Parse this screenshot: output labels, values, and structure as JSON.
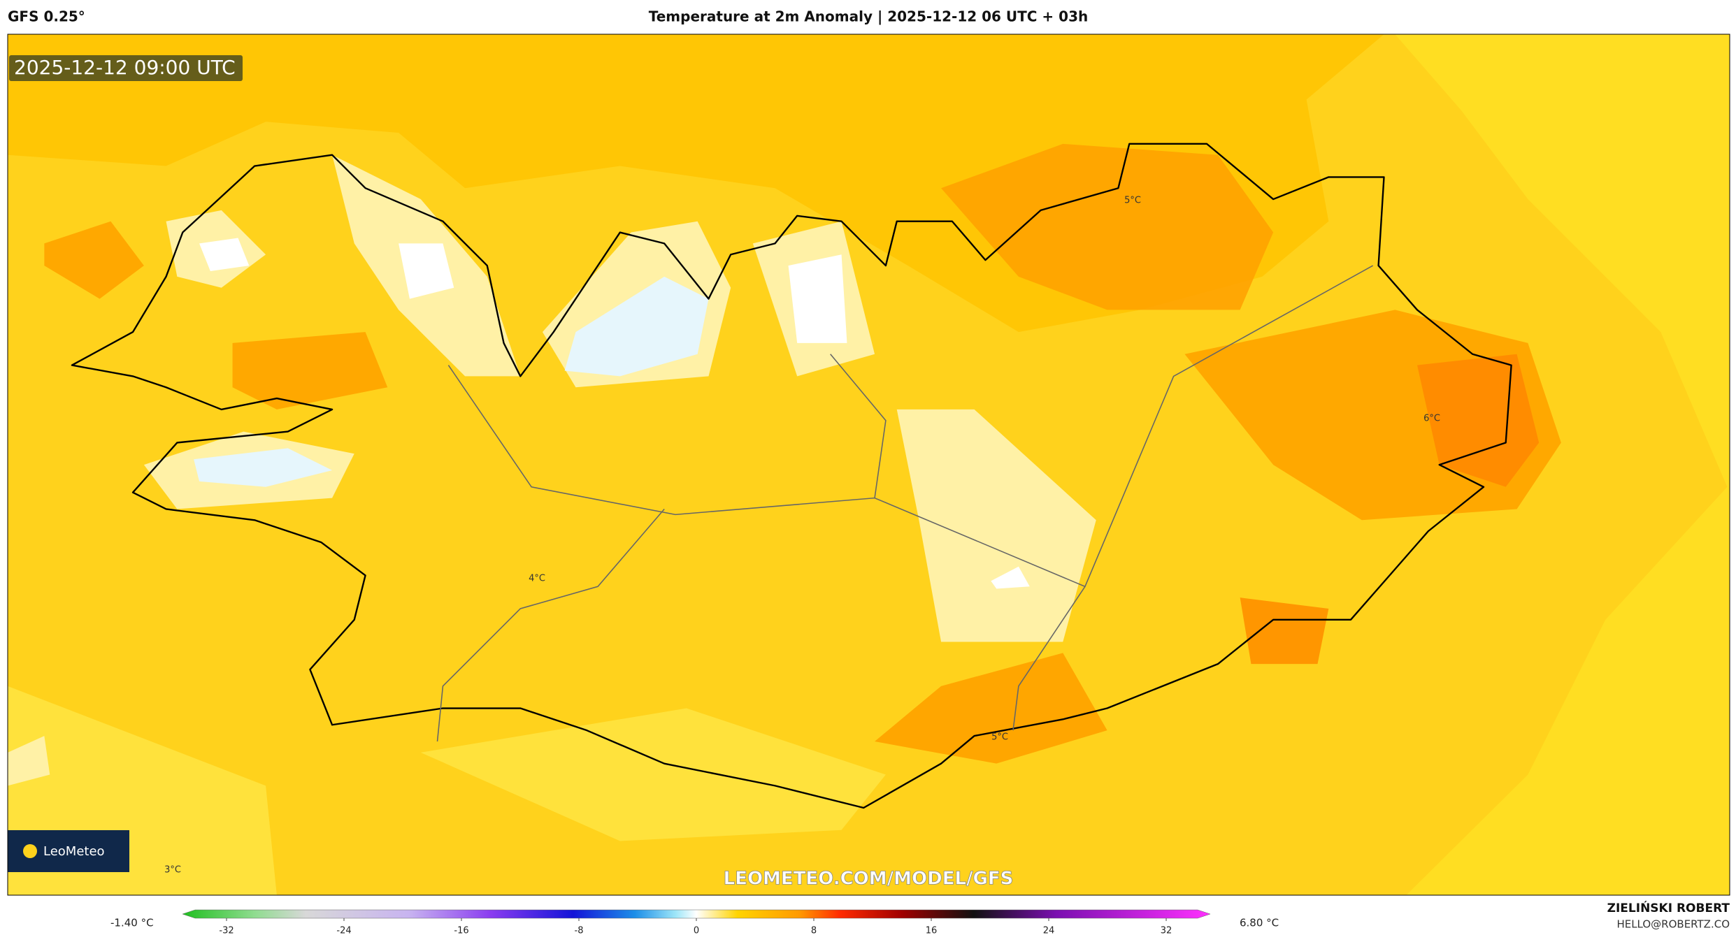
{
  "header": {
    "model": "GFS 0.25°",
    "title": "Temperature at 2m Anomaly | 2025-12-12 06 UTC + 03h"
  },
  "map": {
    "timestamp": "2025-12-12 09:00 UTC",
    "logo": "LeoMeteo",
    "watermark": "LEOMETEO.COM/MODEL/GFS",
    "contour_labels": [
      "5°C",
      "6°C",
      "4°C",
      "5°C",
      "3°C"
    ]
  },
  "colorbar": {
    "min_label": "-1.40 °C",
    "max_label": "6.80 °C",
    "lim": [
      -35,
      35
    ],
    "ticks": [
      -32,
      -24,
      -16,
      -8,
      0,
      8,
      16,
      24,
      32
    ]
  },
  "footer": {
    "author": "ZIELIŃSKI ROBERT",
    "email": "HELLO@ROBERTZ.CO"
  }
}
